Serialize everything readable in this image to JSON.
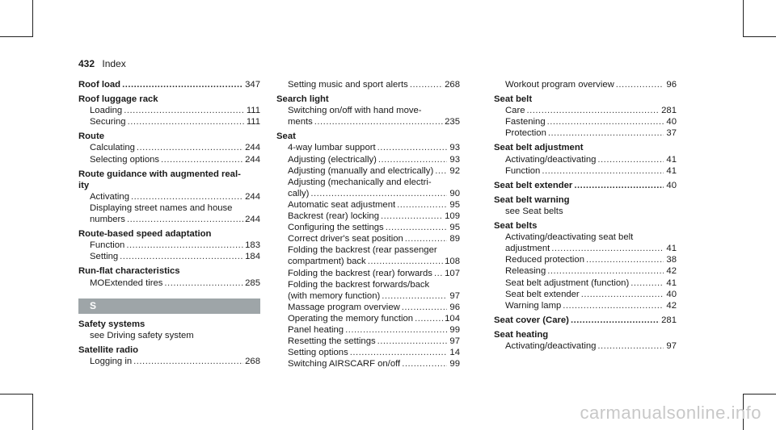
{
  "header": {
    "page_number": "432",
    "title": "Index"
  },
  "watermark": "carmanualsonline.info",
  "columns": [
    [
      {
        "type": "main",
        "text": "Roof load",
        "page": "347"
      },
      {
        "type": "main",
        "text": "Roof luggage rack"
      },
      {
        "type": "sub",
        "text": "Loading",
        "page": "111"
      },
      {
        "type": "sub",
        "text": "Securing",
        "page": "111"
      },
      {
        "type": "main",
        "text": "Route"
      },
      {
        "type": "sub",
        "text": "Calculating",
        "page": "244"
      },
      {
        "type": "sub",
        "text": "Selecting options",
        "page": "244"
      },
      {
        "type": "main",
        "text": "Route guidance with augmented real-"
      },
      {
        "type": "cont",
        "text": "ity"
      },
      {
        "type": "sub",
        "text": "Activating",
        "page": "244"
      },
      {
        "type": "subtext",
        "text": "Displaying street names and house"
      },
      {
        "type": "sub",
        "text": "numbers",
        "page": "244"
      },
      {
        "type": "main",
        "text": "Route-based speed adaptation"
      },
      {
        "type": "sub",
        "text": "Function",
        "page": "183"
      },
      {
        "type": "sub",
        "text": "Setting",
        "page": "184"
      },
      {
        "type": "main",
        "text": "Run-flat characteristics"
      },
      {
        "type": "sub",
        "text": "MOExtended tires",
        "page": "285"
      },
      {
        "type": "section",
        "text": "S"
      },
      {
        "type": "main",
        "text": "Safety systems"
      },
      {
        "type": "subtext",
        "text": "see Driving safety system"
      },
      {
        "type": "main",
        "text": "Satellite radio"
      },
      {
        "type": "sub",
        "text": "Logging in",
        "page": "268"
      }
    ],
    [
      {
        "type": "sub",
        "text": "Setting music and sport alerts",
        "page": "268"
      },
      {
        "type": "main",
        "text": "Search light"
      },
      {
        "type": "subtext",
        "text": "Switching on/off with hand move-"
      },
      {
        "type": "sub",
        "text": "ments",
        "page": "235"
      },
      {
        "type": "main",
        "text": "Seat"
      },
      {
        "type": "sub",
        "text": "4-way lumbar support",
        "page": "93"
      },
      {
        "type": "sub",
        "text": "Adjusting (electrically)",
        "page": "93"
      },
      {
        "type": "sub",
        "text": "Adjusting (manually and electrically)",
        "page": "92"
      },
      {
        "type": "subtext",
        "text": "Adjusting (mechanically and electri-"
      },
      {
        "type": "sub",
        "text": "cally)",
        "page": "90"
      },
      {
        "type": "sub",
        "text": "Automatic seat adjustment",
        "page": "95"
      },
      {
        "type": "sub",
        "text": "Backrest (rear) locking",
        "page": "109"
      },
      {
        "type": "sub",
        "text": "Configuring the settings",
        "page": "95"
      },
      {
        "type": "sub",
        "text": "Correct driver's seat position",
        "page": "89"
      },
      {
        "type": "subtext",
        "text": "Folding the backrest (rear passenger"
      },
      {
        "type": "sub",
        "text": "compartment) back",
        "page": "108"
      },
      {
        "type": "sub",
        "text": "Folding the backrest (rear) forwards",
        "page": "107"
      },
      {
        "type": "subtext",
        "text": "Folding the backrest forwards/back"
      },
      {
        "type": "sub",
        "text": "(with memory function)",
        "page": "97"
      },
      {
        "type": "sub",
        "text": "Massage program overview",
        "page": "96"
      },
      {
        "type": "sub",
        "text": "Operating the memory function",
        "page": "104"
      },
      {
        "type": "sub",
        "text": "Panel heating",
        "page": "99"
      },
      {
        "type": "sub",
        "text": "Resetting the settings",
        "page": "97"
      },
      {
        "type": "sub",
        "text": "Setting options",
        "page": "14"
      },
      {
        "type": "sub",
        "text": "Switching AIRSCARF on/off",
        "page": "99"
      }
    ],
    [
      {
        "type": "sub",
        "text": "Workout program overview",
        "page": "96"
      },
      {
        "type": "main",
        "text": "Seat belt"
      },
      {
        "type": "sub",
        "text": "Care",
        "page": "281"
      },
      {
        "type": "sub",
        "text": "Fastening",
        "page": "40"
      },
      {
        "type": "sub",
        "text": "Protection",
        "page": "37"
      },
      {
        "type": "main",
        "text": "Seat belt adjustment"
      },
      {
        "type": "sub",
        "text": "Activating/deactivating",
        "page": "41"
      },
      {
        "type": "sub",
        "text": "Function",
        "page": "41"
      },
      {
        "type": "main",
        "text": "Seat belt extender",
        "page": "40"
      },
      {
        "type": "main",
        "text": "Seat belt warning"
      },
      {
        "type": "subtext",
        "text": "see Seat belts"
      },
      {
        "type": "main",
        "text": "Seat belts"
      },
      {
        "type": "subtext",
        "text": "Activating/deactivating seat belt"
      },
      {
        "type": "sub",
        "text": "adjustment",
        "page": "41"
      },
      {
        "type": "sub",
        "text": "Reduced protection",
        "page": "38"
      },
      {
        "type": "sub",
        "text": "Releasing",
        "page": "42"
      },
      {
        "type": "sub",
        "text": "Seat belt adjustment (function)",
        "page": "41"
      },
      {
        "type": "sub",
        "text": "Seat belt extender",
        "page": "40"
      },
      {
        "type": "sub",
        "text": "Warning lamp",
        "page": "42"
      },
      {
        "type": "main",
        "text": "Seat cover (Care)",
        "page": "281"
      },
      {
        "type": "main",
        "text": "Seat heating"
      },
      {
        "type": "sub",
        "text": "Activating/deactivating",
        "page": "97"
      }
    ]
  ]
}
